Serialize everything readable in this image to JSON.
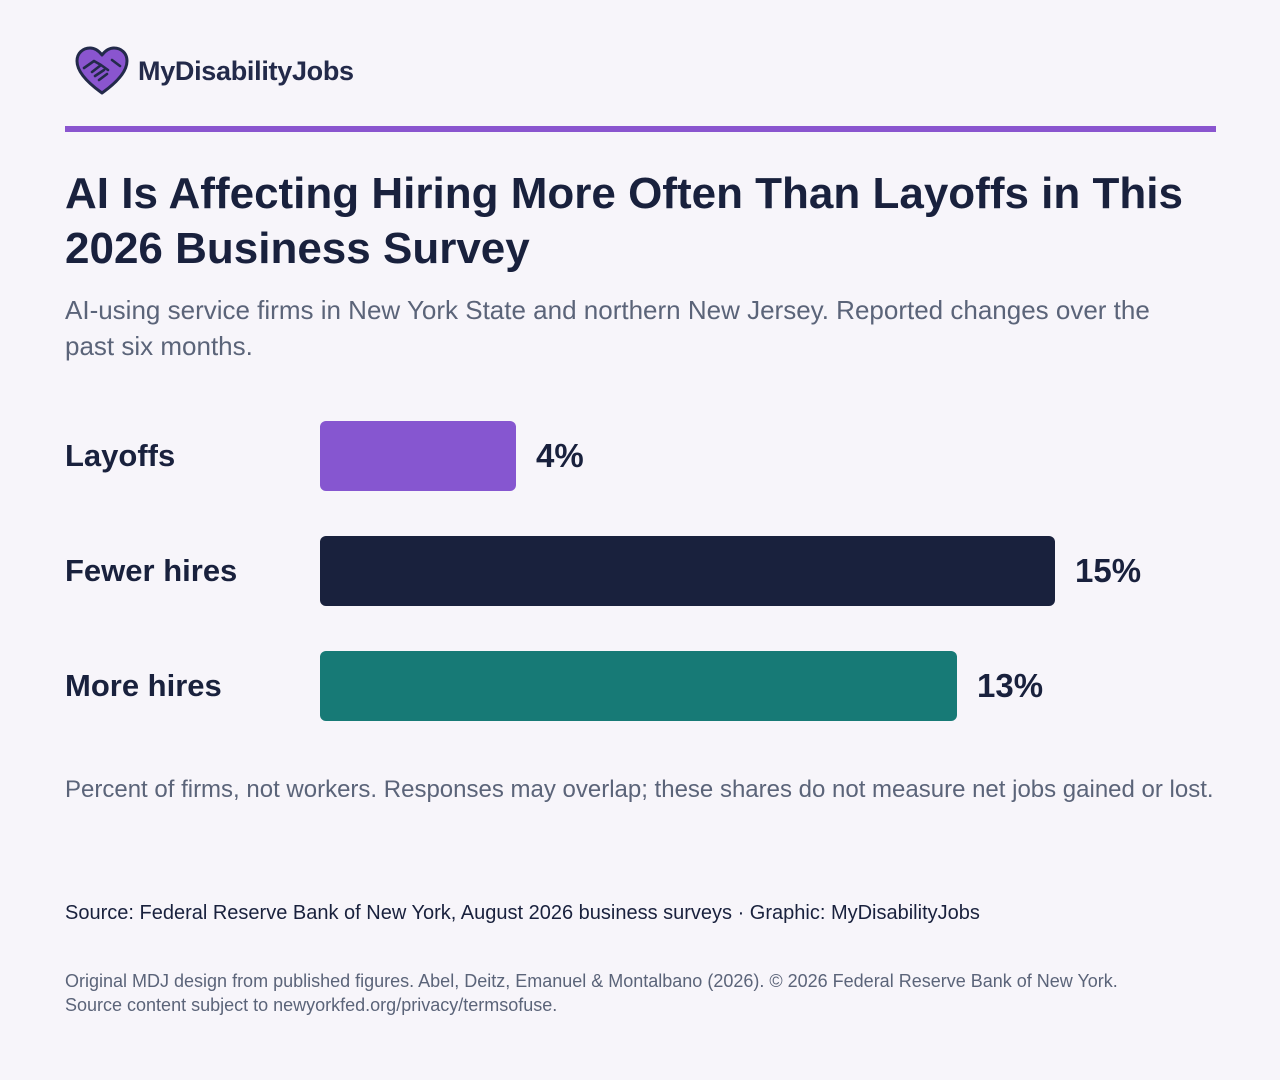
{
  "brand": {
    "name": "MyDisabilityJobs",
    "logo_icon": "heart-handshake-icon",
    "accent_color": "#8a55cf"
  },
  "title": "AI Is Affecting Hiring More Often Than Layoffs in This 2026 Business Survey",
  "subtitle": "AI-using service firms in New York State and northern New Jersey. Reported changes over the past six months.",
  "chart_data": {
    "type": "bar",
    "orientation": "horizontal",
    "categories": [
      "Layoffs",
      "Fewer hires",
      "More hires"
    ],
    "values": [
      4,
      15,
      13
    ],
    "value_labels": [
      "4%",
      "15%",
      "13%"
    ],
    "colors": [
      "#8656d0",
      "#19213d",
      "#177a76"
    ],
    "unit": "%",
    "title": "",
    "xlabel": "",
    "ylabel": "",
    "grid": false,
    "legend": "none"
  },
  "note": "Percent of firms, not workers. Responses may overlap; these shares do not measure net jobs gained or lost.",
  "source": "Source: Federal Reserve Bank of New York, August 2026 business surveys · Graphic: MyDisabilityJobs",
  "credit_line1": "Original MDJ design from published figures. Abel, Deitz, Emanuel & Montalbano (2026). © 2026 Federal Reserve Bank of New York.",
  "credit_line2": "Source content subject to newyorkfed.org/privacy/termsofuse."
}
